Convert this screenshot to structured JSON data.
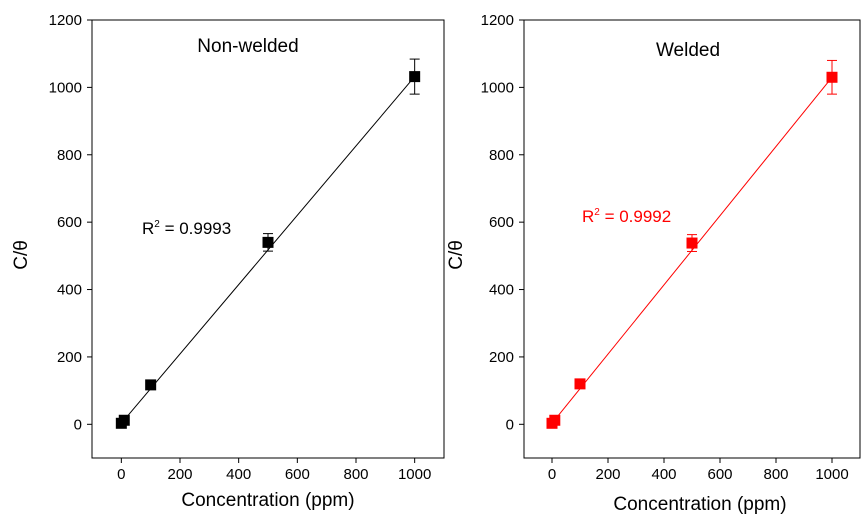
{
  "chart_data": [
    {
      "type": "scatter",
      "title": "Non-welded",
      "xlabel": "Concentration (ppm)",
      "ylabel": "C/θ",
      "xlim": [
        -100,
        1100
      ],
      "ylim": [
        -100,
        1200
      ],
      "xticks": [
        0,
        200,
        400,
        600,
        800,
        1000
      ],
      "yticks": [
        0,
        200,
        400,
        600,
        800,
        1000,
        1200
      ],
      "color": "#000000",
      "annotation": {
        "base": "R",
        "sup": "2",
        "rest": " = 0.9993"
      },
      "series": [
        {
          "points": [
            {
              "x": 0,
              "y": 3,
              "err": 0
            },
            {
              "x": 10,
              "y": 12,
              "err": 0
            },
            {
              "x": 100,
              "y": 117,
              "err": 0
            },
            {
              "x": 500,
              "y": 540,
              "err": 26
            },
            {
              "x": 1000,
              "y": 1032,
              "err": 52
            }
          ],
          "fit": {
            "x": [
              0,
              1000
            ],
            "y": [
              3,
              1032
            ]
          }
        }
      ]
    },
    {
      "type": "scatter",
      "title": "Welded",
      "xlabel": "Concentration (ppm)",
      "ylabel": "C/θ",
      "xlim": [
        -100,
        1100
      ],
      "ylim": [
        -100,
        1200
      ],
      "xticks": [
        0,
        200,
        400,
        600,
        800,
        1000
      ],
      "yticks": [
        0,
        200,
        400,
        600,
        800,
        1000,
        1200
      ],
      "color": "#ff0000",
      "annotation": {
        "base": "R",
        "sup": "2",
        "rest": " = 0.9992"
      },
      "series": [
        {
          "points": [
            {
              "x": 0,
              "y": 3,
              "err": 0
            },
            {
              "x": 10,
              "y": 12,
              "err": 0
            },
            {
              "x": 100,
              "y": 120,
              "err": 0
            },
            {
              "x": 500,
              "y": 538,
              "err": 25
            },
            {
              "x": 1000,
              "y": 1030,
              "err": 50
            }
          ],
          "fit": {
            "x": [
              0,
              1000
            ],
            "y": [
              3,
              1030
            ]
          }
        }
      ]
    }
  ]
}
